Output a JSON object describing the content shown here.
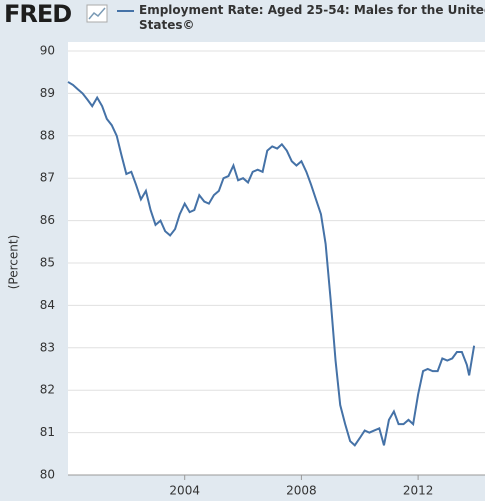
{
  "logo": "FRED",
  "chart_data": {
    "type": "line",
    "title": "Employment Rate: Aged 25-54: Males for the United States©",
    "ylabel": "(Percent)",
    "series": [
      {
        "name": "Employment Rate: Aged 25-54: Males for the United States©",
        "color": "#4572a7",
        "x": [
          2000,
          2000.17,
          2000.33,
          2000.5,
          2000.67,
          2000.83,
          2001,
          2001.17,
          2001.33,
          2001.5,
          2001.67,
          2001.83,
          2002,
          2002.17,
          2002.33,
          2002.5,
          2002.67,
          2002.83,
          2003,
          2003.17,
          2003.33,
          2003.5,
          2003.67,
          2003.83,
          2004,
          2004.17,
          2004.33,
          2004.5,
          2004.67,
          2004.83,
          2005,
          2005.17,
          2005.33,
          2005.5,
          2005.67,
          2005.83,
          2006,
          2006.17,
          2006.33,
          2006.5,
          2006.67,
          2006.83,
          2007,
          2007.17,
          2007.33,
          2007.5,
          2007.67,
          2007.83,
          2008,
          2008.17,
          2008.33,
          2008.5,
          2008.67,
          2008.83,
          2009,
          2009.17,
          2009.33,
          2009.5,
          2009.67,
          2009.83,
          2010,
          2010.17,
          2010.33,
          2010.5,
          2010.67,
          2010.83,
          2011,
          2011.17,
          2011.33,
          2011.5,
          2011.67,
          2011.83,
          2012,
          2012.17,
          2012.33,
          2012.5,
          2012.67,
          2012.83,
          2013,
          2013.17,
          2013.33,
          2013.5,
          2013.67,
          2013.75,
          2013.92
        ],
        "values": [
          89.27,
          89.2,
          89.1,
          89.0,
          88.85,
          88.7,
          88.9,
          88.7,
          88.4,
          88.25,
          88.0,
          87.55,
          87.1,
          87.15,
          86.85,
          86.5,
          86.7,
          86.25,
          85.9,
          86.0,
          85.75,
          85.65,
          85.8,
          86.15,
          86.4,
          86.2,
          86.25,
          86.6,
          86.45,
          86.4,
          86.6,
          86.7,
          87.0,
          87.05,
          87.3,
          86.95,
          87.0,
          86.9,
          87.15,
          87.2,
          87.15,
          87.65,
          87.75,
          87.7,
          87.8,
          87.65,
          87.4,
          87.3,
          87.4,
          87.15,
          86.85,
          86.5,
          86.15,
          85.45,
          84.15,
          82.7,
          81.65,
          81.2,
          80.8,
          80.7,
          80.87,
          81.05,
          81.0,
          81.05,
          81.1,
          80.7,
          81.3,
          81.5,
          81.2,
          81.2,
          81.3,
          81.2,
          81.9,
          82.45,
          82.5,
          82.45,
          82.45,
          82.75,
          82.7,
          82.75,
          82.9,
          82.9,
          82.6,
          82.35,
          83.05
        ]
      }
    ],
    "xlim": [
      2000,
      2013.95
    ],
    "xticks": [
      2004,
      2008,
      2012
    ],
    "ylim": [
      80,
      90
    ],
    "yticks": [
      80,
      81,
      82,
      83,
      84,
      85,
      86,
      87,
      88,
      89,
      90
    ],
    "grid": true
  }
}
